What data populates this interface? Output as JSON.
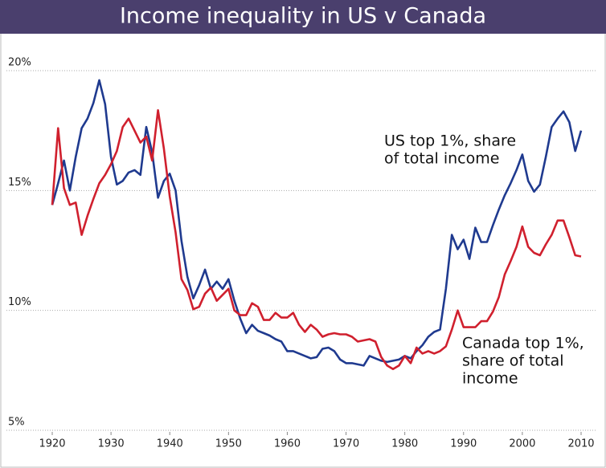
{
  "chart_data": {
    "type": "line",
    "title": "Income inequality in US v Canada",
    "x": [
      1920,
      1921,
      1922,
      1923,
      1924,
      1925,
      1926,
      1927,
      1928,
      1929,
      1930,
      1931,
      1932,
      1933,
      1934,
      1935,
      1936,
      1937,
      1938,
      1939,
      1940,
      1941,
      1942,
      1943,
      1944,
      1945,
      1946,
      1947,
      1948,
      1949,
      1950,
      1951,
      1952,
      1953,
      1954,
      1955,
      1956,
      1957,
      1958,
      1959,
      1960,
      1961,
      1962,
      1963,
      1964,
      1965,
      1966,
      1967,
      1968,
      1969,
      1970,
      1971,
      1972,
      1973,
      1974,
      1975,
      1976,
      1977,
      1978,
      1979,
      1980,
      1981,
      1982,
      1983,
      1984,
      1985,
      1986,
      1987,
      1988,
      1989,
      1990,
      1991,
      1992,
      1993,
      1994,
      1995,
      1996,
      1997,
      1998,
      1999,
      2000,
      2001,
      2002,
      2003,
      2004,
      2005,
      2006,
      2007,
      2008,
      2009,
      2010
    ],
    "series": [
      {
        "color": "#1f3a8f",
        "values": [
          14.4,
          15.3,
          16.25,
          15.0,
          16.4,
          17.6,
          18.0,
          18.65,
          19.6,
          18.6,
          16.4,
          15.25,
          15.4,
          15.75,
          15.85,
          15.65,
          17.65,
          16.6,
          14.7,
          15.4,
          15.7,
          15.0,
          12.9,
          11.4,
          10.5,
          11.05,
          11.7,
          10.9,
          11.2,
          10.9,
          11.3,
          10.4,
          9.65,
          9.05,
          9.4,
          9.15,
          9.05,
          8.95,
          8.8,
          8.7,
          8.3,
          8.3,
          8.2,
          8.1,
          8.0,
          8.05,
          8.4,
          8.45,
          8.3,
          7.95,
          7.8,
          7.8,
          7.75,
          7.7,
          8.1,
          8.0,
          7.9,
          7.85,
          7.9,
          7.95,
          8.1,
          8.0,
          8.3,
          8.55,
          8.9,
          9.1,
          9.2,
          10.9,
          13.15,
          12.55,
          12.95,
          12.15,
          13.45,
          12.85,
          12.85,
          13.55,
          14.2,
          14.8,
          15.3,
          15.85,
          16.5,
          15.4,
          14.95,
          15.25,
          16.4,
          17.65,
          18.0,
          18.3,
          17.85,
          16.65,
          17.5
        ]
      },
      {
        "color": "#d0202e",
        "values": [
          14.4,
          17.6,
          15.1,
          14.4,
          14.5,
          13.15,
          13.95,
          14.65,
          15.3,
          15.65,
          16.1,
          16.65,
          17.65,
          18.0,
          17.5,
          17.0,
          17.25,
          16.25,
          18.35,
          16.75,
          14.75,
          13.25,
          11.3,
          10.85,
          10.05,
          10.15,
          10.7,
          10.95,
          10.4,
          10.65,
          10.9,
          10.0,
          9.8,
          9.8,
          10.3,
          10.15,
          9.6,
          9.6,
          9.9,
          9.7,
          9.7,
          9.9,
          9.4,
          9.1,
          9.4,
          9.2,
          8.9,
          9.0,
          9.05,
          9.0,
          9.0,
          8.9,
          8.7,
          8.75,
          8.8,
          8.7,
          8.05,
          7.7,
          7.55,
          7.7,
          8.1,
          7.8,
          8.45,
          8.2,
          8.3,
          8.2,
          8.3,
          8.5,
          9.2,
          10.0,
          9.3,
          9.3,
          9.3,
          9.55,
          9.55,
          9.95,
          10.55,
          11.5,
          12.05,
          12.65,
          13.5,
          12.65,
          12.4,
          12.3,
          12.75,
          13.15,
          13.75,
          13.75,
          13.05,
          12.3,
          12.25
        ]
      }
    ],
    "xlim": [
      1920,
      2010
    ],
    "xticks": [
      1920,
      1930,
      1940,
      1950,
      1960,
      1970,
      1980,
      1990,
      2000,
      2010
    ],
    "ylim": [
      5,
      20
    ],
    "yticks": [
      {
        "value": 5,
        "label": "5%"
      },
      {
        "value": 10,
        "label": "10%"
      },
      {
        "value": 15,
        "label": "15%"
      },
      {
        "value": 20,
        "label": "20%"
      }
    ],
    "grid": true,
    "annotations": [
      {
        "lines": [
          "US top 1%, share",
          "of total income"
        ]
      },
      {
        "lines": [
          "Canada top 1%,",
          "share of total",
          "income"
        ]
      }
    ]
  }
}
